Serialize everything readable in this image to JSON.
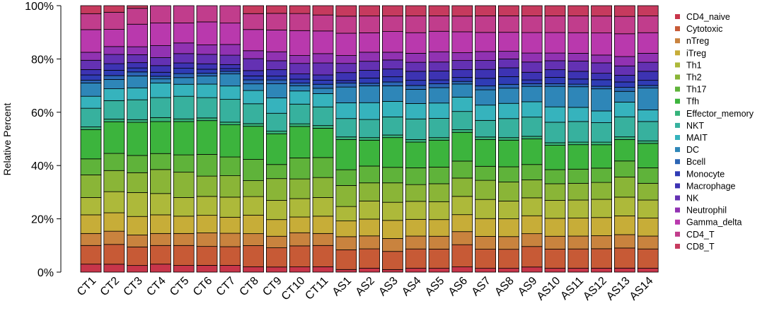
{
  "chart_data": {
    "type": "bar",
    "stacked": true,
    "ylabel": "Relative Percent",
    "xlabel": "",
    "ylim": [
      0,
      100
    ],
    "y_ticks": [
      "0%",
      "20%",
      "40%",
      "60%",
      "80%",
      "100%"
    ],
    "grid": false,
    "legend_position": "right",
    "categories": [
      "CT1",
      "CT2",
      "CT3",
      "CT4",
      "CT5",
      "CT6",
      "CT7",
      "CT8",
      "CT9",
      "CT10",
      "CT11",
      "AS1",
      "AS2",
      "AS3",
      "AS4",
      "AS5",
      "AS6",
      "AS7",
      "AS8",
      "AS9",
      "AS10",
      "AS11",
      "AS12",
      "AS13",
      "AS14"
    ],
    "series": [
      {
        "name": "CD4_naive",
        "color": "#c8354a",
        "values": [
          3.0,
          3.0,
          2.5,
          3.0,
          2.5,
          2.5,
          2.5,
          2.0,
          2.0,
          2.0,
          2.0,
          1.0,
          1.5,
          1.0,
          1.5,
          1.5,
          2.0,
          1.5,
          1.5,
          2.0,
          1.5,
          1.5,
          1.5,
          1.5,
          1.5
        ]
      },
      {
        "name": "Cytotoxic",
        "color": "#c75a36",
        "values": [
          7.0,
          7.5,
          7.0,
          7.0,
          7.5,
          7.0,
          7.0,
          8.0,
          7.5,
          8.0,
          8.0,
          7.5,
          7.5,
          7.0,
          7.5,
          7.5,
          8.5,
          7.5,
          7.5,
          8.0,
          7.5,
          7.5,
          7.5,
          7.5,
          7.5
        ]
      },
      {
        "name": "nTreg",
        "color": "#c9833e",
        "values": [
          4.5,
          5.0,
          4.5,
          4.5,
          4.5,
          5.0,
          5.0,
          4.5,
          4.5,
          5.0,
          4.5,
          5.0,
          5.0,
          5.0,
          5.0,
          5.0,
          5.0,
          5.0,
          5.0,
          5.0,
          5.0,
          5.0,
          5.0,
          5.0,
          5.0
        ]
      },
      {
        "name": "iTreg",
        "color": "#c7ad38",
        "values": [
          7.0,
          7.0,
          7.0,
          7.0,
          6.5,
          6.5,
          6.0,
          7.0,
          6.5,
          6.0,
          6.5,
          6.0,
          6.5,
          7.0,
          6.5,
          6.5,
          6.5,
          7.0,
          7.0,
          7.0,
          7.0,
          7.0,
          7.0,
          7.0,
          7.0
        ]
      },
      {
        "name": "Th1",
        "color": "#adb93a",
        "values": [
          6.5,
          8.0,
          9.0,
          8.0,
          7.0,
          7.0,
          7.5,
          7.0,
          7.5,
          7.0,
          7.0,
          5.5,
          7.0,
          7.0,
          7.0,
          7.0,
          7.0,
          7.5,
          7.0,
          7.0,
          7.0,
          7.0,
          7.0,
          7.0,
          7.0
        ]
      },
      {
        "name": "Th2",
        "color": "#8ab537",
        "values": [
          8.5,
          8.0,
          7.5,
          9.0,
          9.5,
          7.5,
          8.0,
          6.0,
          8.5,
          7.5,
          7.5,
          8.0,
          7.0,
          7.5,
          6.5,
          7.0,
          7.0,
          7.5,
          7.5,
          7.0,
          6.5,
          6.5,
          6.5,
          7.5,
          6.5
        ]
      },
      {
        "name": "Th17",
        "color": "#5fb33a",
        "values": [
          6.0,
          6.5,
          6.5,
          6.0,
          6.5,
          8.0,
          7.0,
          8.0,
          5.5,
          8.0,
          7.5,
          6.0,
          6.5,
          6.0,
          6.5,
          6.5,
          6.5,
          5.5,
          6.0,
          6.0,
          5.5,
          5.5,
          5.5,
          6.0,
          6.0
        ]
      },
      {
        "name": "Tfh",
        "color": "#3cb43d",
        "values": [
          11.0,
          12.0,
          12.5,
          12.0,
          12.5,
          12.5,
          12.0,
          12.5,
          12.0,
          12.0,
          11.0,
          11.5,
          10.0,
          11.5,
          10.0,
          10.5,
          11.0,
          10.5,
          10.5,
          10.0,
          9.5,
          9.5,
          9.0,
          8.0,
          9.5
        ]
      },
      {
        "name": "Effector_memory",
        "color": "#36b37a",
        "values": [
          1.0,
          1.0,
          1.0,
          1.5,
          1.0,
          1.0,
          1.0,
          1.0,
          1.0,
          1.0,
          1.0,
          1.0,
          1.0,
          1.0,
          1.0,
          1.0,
          1.0,
          1.0,
          1.0,
          1.0,
          1.0,
          1.0,
          1.0,
          1.0,
          1.0
        ]
      },
      {
        "name": "NKT",
        "color": "#37b19e",
        "values": [
          7.0,
          7.0,
          7.5,
          7.5,
          8.5,
          7.5,
          8.5,
          7.5,
          7.0,
          7.5,
          7.0,
          7.0,
          7.0,
          7.0,
          8.0,
          7.5,
          7.0,
          6.5,
          7.5,
          7.5,
          8.0,
          8.0,
          7.5,
          7.5,
          7.5
        ]
      },
      {
        "name": "MAIT",
        "color": "#36b3bd",
        "values": [
          4.5,
          4.5,
          4.5,
          5.5,
          4.5,
          5.0,
          5.0,
          5.0,
          6.0,
          5.0,
          5.0,
          6.0,
          6.5,
          6.0,
          6.0,
          6.0,
          5.5,
          6.0,
          6.0,
          6.0,
          6.0,
          5.5,
          4.5,
          5.5,
          4.5
        ]
      },
      {
        "name": "DC",
        "color": "#2e86b8",
        "values": [
          5.0,
          3.5,
          4.5,
          1.5,
          2.5,
          3.0,
          4.5,
          2.5,
          5.5,
          2.0,
          2.0,
          6.0,
          6.5,
          6.0,
          5.5,
          6.0,
          5.0,
          6.0,
          6.0,
          6.0,
          8.0,
          8.0,
          8.5,
          4.0,
          8.5
        ]
      },
      {
        "name": "Bcell",
        "color": "#2c65b4",
        "values": [
          1.0,
          1.5,
          1.5,
          1.0,
          1.5,
          1.0,
          1.0,
          1.5,
          1.5,
          1.0,
          1.5,
          1.5,
          1.0,
          1.5,
          1.5,
          1.5,
          1.0,
          1.5,
          1.5,
          1.0,
          1.0,
          1.0,
          1.0,
          1.5,
          1.0
        ]
      },
      {
        "name": "Monocyte",
        "color": "#2f3cb5",
        "values": [
          2.0,
          2.0,
          1.5,
          1.5,
          2.0,
          1.5,
          1.0,
          1.5,
          1.5,
          1.5,
          1.5,
          1.0,
          2.0,
          2.0,
          2.0,
          1.5,
          1.5,
          3.0,
          3.0,
          1.5,
          2.5,
          2.0,
          2.5,
          2.0,
          2.0
        ]
      },
      {
        "name": "Macrophage",
        "color": "#3d33b3",
        "values": [
          2.0,
          2.5,
          2.0,
          2.5,
          2.0,
          2.0,
          1.5,
          2.0,
          2.5,
          2.0,
          2.0,
          3.0,
          3.0,
          3.0,
          3.5,
          3.5,
          3.0,
          3.5,
          3.5,
          3.0,
          3.0,
          3.0,
          2.5,
          2.5,
          3.5
        ]
      },
      {
        "name": "NK",
        "color": "#6431b3",
        "values": [
          3.5,
          3.5,
          3.0,
          3.0,
          3.5,
          3.5,
          3.5,
          4.5,
          3.5,
          4.0,
          4.5,
          3.5,
          3.5,
          3.5,
          3.5,
          3.5,
          3.5,
          3.5,
          3.5,
          4.0,
          3.5,
          4.0,
          4.0,
          3.5,
          3.5
        ]
      },
      {
        "name": "Neutrophil",
        "color": "#9132b2",
        "values": [
          3.0,
          3.0,
          3.0,
          4.5,
          4.0,
          3.5,
          4.0,
          3.0,
          3.5,
          3.0,
          3.5,
          3.0,
          3.5,
          3.0,
          3.5,
          4.0,
          3.0,
          3.5,
          3.0,
          3.5,
          3.0,
          3.0,
          3.0,
          3.5,
          3.5
        ]
      },
      {
        "name": "Gamma_delta",
        "color": "#b939ad",
        "values": [
          8.5,
          6.5,
          8.5,
          8.5,
          7.5,
          8.5,
          8.0,
          8.0,
          8.5,
          9.5,
          8.5,
          8.5,
          7.5,
          8.0,
          8.0,
          8.0,
          8.0,
          7.5,
          7.5,
          8.0,
          8.0,
          8.0,
          8.5,
          8.5,
          8.0
        ]
      },
      {
        "name": "CD4_T",
        "color": "#c13d8c",
        "values": [
          6.0,
          6.5,
          6.0,
          6.5,
          6.5,
          6.0,
          6.5,
          6.0,
          6.5,
          6.5,
          6.0,
          6.5,
          6.5,
          6.0,
          6.5,
          6.0,
          6.0,
          6.5,
          6.5,
          6.5,
          6.5,
          6.5,
          6.5,
          6.5,
          6.5
        ]
      },
      {
        "name": "CD8_T",
        "color": "#c63a5e",
        "values": [
          3.0,
          2.5,
          1.0,
          0.0,
          0.0,
          0.0,
          0.0,
          3.0,
          3.0,
          3.0,
          3.5,
          4.0,
          4.0,
          4.0,
          4.0,
          4.0,
          4.0,
          4.0,
          4.0,
          4.0,
          4.0,
          4.0,
          4.0,
          4.0,
          4.0
        ]
      }
    ]
  }
}
